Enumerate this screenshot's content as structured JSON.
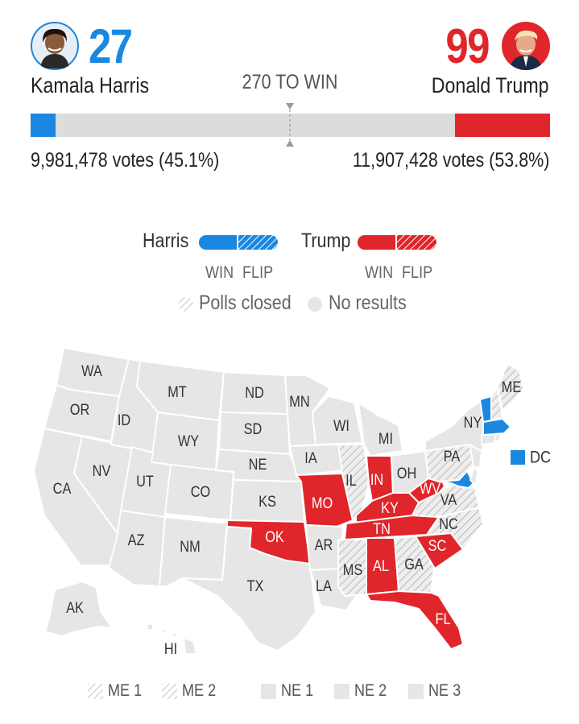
{
  "colors": {
    "harris": "#1a87e0",
    "trump": "#e0262b",
    "no_result": "#e6e6e6",
    "bar_bg": "#dcdcdc",
    "border": "#ffffff"
  },
  "header": {
    "harris": {
      "name": "Kamala Harris",
      "electoral_votes": "27",
      "votes_text": "9,981,478 votes (45.1%)",
      "avatar": "harris-portrait"
    },
    "trump": {
      "name": "Donald Trump",
      "electoral_votes": "99",
      "votes_text": "11,907,428 votes (53.8%)",
      "avatar": "trump-portrait"
    },
    "threshold_label": "270 TO WIN",
    "progress": {
      "harris_ev": 27,
      "trump_ev": 99,
      "total_ev": 538,
      "threshold": 270
    }
  },
  "legend": {
    "harris_label": "Harris",
    "trump_label": "Trump",
    "win_label": "WIN",
    "flip_label": "FLIP",
    "polls_closed_label": "Polls closed",
    "no_results_label": "No results"
  },
  "map": {
    "dc_label": "DC",
    "states": {
      "WA": "WA",
      "OR": "OR",
      "CA": "CA",
      "NV": "NV",
      "ID": "ID",
      "MT": "MT",
      "WY": "WY",
      "UT": "UT",
      "AZ": "AZ",
      "CO": "CO",
      "NM": "NM",
      "ND": "ND",
      "SD": "SD",
      "NE": "NE",
      "KS": "KS",
      "OK": "OK",
      "TX": "TX",
      "MN": "MN",
      "IA": "IA",
      "MO": "MO",
      "AR": "AR",
      "LA": "LA",
      "WI": "WI",
      "IL": "IL",
      "MI": "MI",
      "IN": "IN",
      "OH": "OH",
      "KY": "KY",
      "TN": "TN",
      "MS": "MS",
      "AL": "AL",
      "GA": "GA",
      "FL": "FL",
      "SC": "SC",
      "NC": "NC",
      "VA": "VA",
      "WV": "WV",
      "PA": "PA",
      "NY": "NY",
      "ME": "ME",
      "AK": "AK",
      "HI": "HI"
    },
    "status": {
      "trump_win": [
        "OK",
        "MO",
        "IN",
        "KY",
        "TN",
        "AL",
        "FL",
        "SC",
        "WV"
      ],
      "harris_win": [
        "VT",
        "MA",
        "MD",
        "DC"
      ],
      "polls_closed": [
        "IL",
        "MS",
        "GA",
        "NC",
        "VA",
        "PA",
        "NH",
        "ME"
      ]
    }
  },
  "districts": {
    "me1": "ME 1",
    "me2": "ME 2",
    "ne1": "NE 1",
    "ne2": "NE 2",
    "ne3": "NE 3"
  }
}
